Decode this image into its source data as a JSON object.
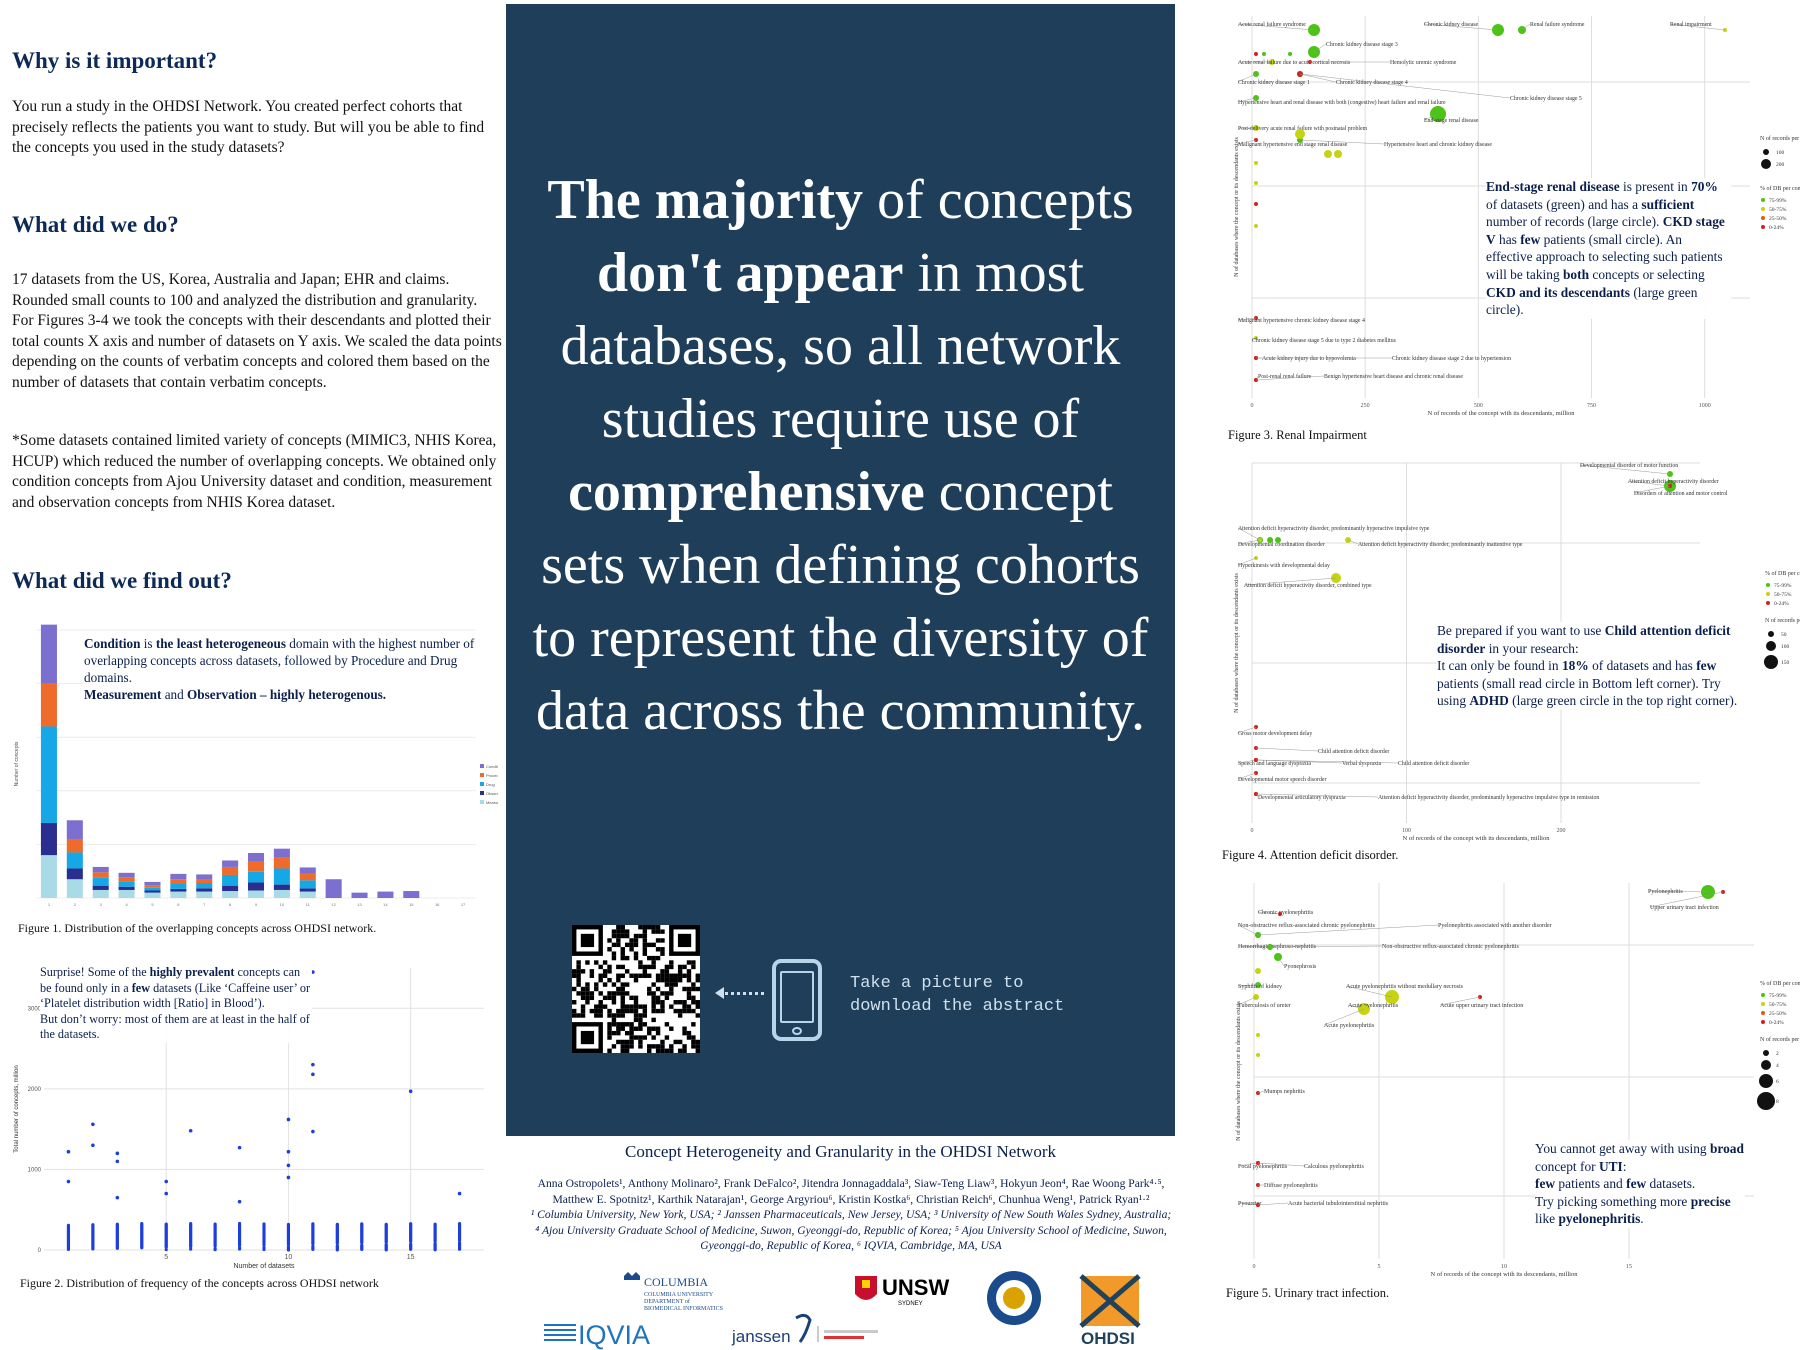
{
  "left": {
    "why_heading": "Why is it important?",
    "why_text": "You run a study in the OHDSI Network. You created perfect cohorts that precisely reflects the patients you want to study. But will you be able to find the concepts you used in the study datasets?",
    "what_heading": "What did we do?",
    "what_text": "17 datasets from the US, Korea, Australia and Japan; EHR and claims. Rounded small counts to 100 and analyzed the distribution and granularity. For Figures 3-4 we took the concepts with their descendants and plotted their total counts X axis and number of datasets on Y axis. We scaled the data points depending on the counts of verbatim concepts and colored them based on the number of datasets that contain verbatim concepts.",
    "some_text": "*Some datasets contained limited variety of concepts (MIMIC3, NHIS Korea, HCUP) which reduced the number of overlapping concepts. We obtained only condition concepts from Ajou University dataset and condition, measurement and observation concepts from NHIS Korea dataset.",
    "found_heading": "What did we find out?"
  },
  "fig1": {
    "caption": "Figure 1. Distribution of the overlapping concepts across OHDSI network.",
    "callout_1": "Condition",
    "callout_2": " is ",
    "callout_3": "the least heterogeneous",
    "callout_4": " domain with the highest number of overlapping concepts across datasets,  followed by Procedure and Drug domains.",
    "callout_5": "Measurement",
    "callout_6": " and ",
    "callout_7": "Observation – highly heterogenous.",
    "ylabel": "Number of concepts",
    "legend": [
      "Condition",
      "Procedure",
      "Drug",
      "Observation",
      "Measurement"
    ],
    "colors": [
      "#7b6fd0",
      "#ee6b2b",
      "#16a7e6",
      "#2a2f8f",
      "#a9dbe6"
    ]
  },
  "fig2": {
    "caption": "Figure 2. Distribution of frequency of the concepts across OHDSI network",
    "callout_1": "Surprise! Some of the ",
    "callout_2": "highly prevalent",
    "callout_3": " concepts can be found only in a ",
    "callout_4": "few",
    "callout_5": " datasets (Like ‘Caffeine user’ or ‘Platelet distribution width [Ratio] in Blood’).",
    "callout_6": "But don’t worry: most of them are at least in the half of the datasets.",
    "xlabel": "Number of datasets",
    "ylabel": "Total number of concepts, million",
    "xticks": [
      "5",
      "10",
      "15"
    ],
    "yticks": [
      "0",
      "1000",
      "2000",
      "3000"
    ]
  },
  "center": {
    "headline_parts": [
      "The majority",
      " of concepts ",
      "don't appear",
      " in most databases, so all network studies require use of ",
      "comprehensive",
      " concept sets when defining cohorts to represent the diversity of data across the community."
    ],
    "take_line1": "Take a picture to",
    "take_line2": "download the abstract",
    "title": "Concept Heterogeneity and Granularity in the OHDSI Network",
    "authors_line1": "Anna Ostropolets¹, Anthony Molinaro², Frank DeFalco², Jitendra Jonnagaddala³, Siaw-Teng Liaw³, Hokyun Jeon⁴, Rae Woong Park⁴·⁵,",
    "authors_line2": "Matthew E. Spotnitz¹, Karthik Natarajan¹, George Argyriou⁶, Kristin Kostka⁶, Christian Reich⁶, Chunhua Weng¹, Patrick Ryan¹·²",
    "affil_line1": "¹ Columbia University, New York, USA; ² Janssen Pharmaceuticals, New Jersey, USA; ³ University of New South Wales Sydney, Australia;",
    "affil_line2": "⁴ Ajou University Graduate School of Medicine, Suwon, Gyeonggi-do, Republic of Korea; ⁵ Ajou University School of Medicine, Suwon,",
    "affil_line3": "Gyeonggi-do, Republic of Korea, ⁶ IQVIA, Cambridge, MA, USA"
  },
  "logos": {
    "columbia_name": "COLUMBIA",
    "columbia_sub1": "COLUMBIA UNIVERSITY",
    "columbia_sub2": "DEPARTMENT of",
    "columbia_sub3": "BIOMEDICAL INFORMATICS",
    "iqvia": "IQVIA",
    "janssen": "janssen",
    "unsw": "UNSW",
    "unsw_sub": "SYDNEY",
    "ajou": "AJOU UNIVERSITY",
    "ohdsi": "OHDSI"
  },
  "fig3": {
    "caption": "Figure 3. Renal Impairment",
    "xlabel": "N of records of the concept with its descendants, million",
    "ylabel": "N of databases where the concept or its descendants exists",
    "xticks": [
      "0",
      "250",
      "500",
      "750",
      "1000"
    ],
    "labels": [
      "Acute renal failure syndrome",
      "Chronic kidney disease",
      "Renal failure syndrome",
      "Renal impairment",
      "Chronic kidney disease stage 3",
      "Acute renal failure due to acute cortical necrosis",
      "Hemolytic uremic syndrome",
      "Chronic kidney disease stage 1",
      "Chronic kidney disease stage 4",
      "Chronic kidney disease stage 5",
      "Hypertensive heart and renal disease with both (congestive) heart failure and renal failure",
      "End-stage renal disease",
      "Post-delivery acute renal failure with postnatal problem",
      "Malignant hypertensive end stage renal disease",
      "Hypertensive heart and chronic kidney disease",
      "Malignant hypertensive chronic kidney disease stage 4",
      "Chronic kidney disease stage 5 due to type 2 diabetes mellitus",
      "Acute kidney injury due to hypovolemia",
      "Chronic kidney disease stage 2 due to hypertension",
      "Post-renal renal failure",
      "Benign hypertensive heart disease and chronic renal disease"
    ],
    "callout_1": "End-stage renal disease",
    "callout_2": " is present in ",
    "callout_3": "70%",
    "callout_4": " of datasets (green) and has a ",
    "callout_5": "sufficient",
    "callout_6": " number of records (large circle). ",
    "callout_7": "CKD stage V",
    "callout_8": " has ",
    "callout_9": "few",
    "callout_10": " patients (small circle). An effective approach to selecting such patients will be taking ",
    "callout_11": "both",
    "callout_12": " concepts or selecting ",
    "callout_13": "CKD and its descendants",
    "callout_14": " (large green circle).",
    "legend_size_title": "N of records per concept, million",
    "legend_size_vals": [
      "100",
      "200"
    ],
    "legend_color_title": "% of DB per concept",
    "legend_color_vals": [
      "75-99%",
      "50-75%",
      "25-50%",
      "0-24%"
    ]
  },
  "fig4": {
    "caption": "Figure 4. Attention deficit disorder.",
    "xlabel": "N of records of the concept with its descendants, million",
    "ylabel": "N of databases where the concept or its descendants exists",
    "xticks": [
      "0",
      "100",
      "200"
    ],
    "labels": [
      "Developmental disorder of motor function",
      "Attention deficit hyperactivity disorder",
      "Disorders of attention and motor control",
      "Attention deficit hyperactivity disorder, predominantly hyperactive impulsive type",
      "Developmental coordination disorder",
      "Attention deficit hyperactivity disorder, predominantly inattentive type",
      "Hyperkinesis with developmental delay",
      "Attention deficit hyperactivity disorder, combined type",
      "Gross motor development delay",
      "Child attention deficit disorder",
      "Speech and language dyspraxia",
      "Verbal dyspraxia",
      "Child attention deficit disorder",
      "Developmental motor speech disorder",
      "Developmental articulatory dyspraxia",
      "Attention deficit hyperactivity disorder, predominantly hyperactive impulsive type in remission"
    ],
    "callout_1": "Be prepared ",
    "callout_2": "if you want to use ",
    "callout_3": "Child attention deficit disorder",
    "callout_4": " in your research:",
    "callout_5": "It can only be found in ",
    "callout_6": "18%",
    "callout_7": " of datasets and has ",
    "callout_8": "few",
    "callout_9": " patients (small read circle in Bottom left corner). Try using ",
    "callout_10": "ADHD",
    "callout_11": " (large green circle in the top right corner).",
    "legend_color_title": "% of DB per concept",
    "legend_color_vals": [
      "75-99%",
      "50-75%",
      "0-24%"
    ],
    "legend_size_title": "N of records per concept, million",
    "legend_size_vals": [
      "50",
      "100",
      "150"
    ]
  },
  "fig5": {
    "caption": "Figure 5. Urinary tract infection.",
    "xlabel": "N of records of the concept with its descendants, million",
    "ylabel": "N of databases where the concept or its descendants exists",
    "xticks": [
      "0",
      "5",
      "10",
      "15"
    ],
    "labels": [
      "Pyelonephritis",
      "Upper urinary tract infection",
      "Chronic pyelonephritis",
      "Non-obstructive reflux-associated chronic pyelonephritis",
      "Pyelonephritis associated with another disorder",
      "Hemorrhagic nephroso-nephritis",
      "Non-obstructive reflux-associated chronic pyelonephritis",
      "Pyonephrosis",
      "Syphilis of kidney",
      "Acute pyelonephritis without medullary necrosis",
      "Tuberculosis of ureter",
      "Acute pyelonephritis",
      "Acute upper urinary tract infection",
      "Acute pyelonephritis",
      "Mumps nephritis",
      "Focal pyelonephritis",
      "Calculous pyelonephritis",
      "Diffuse pyelonephritis",
      "Pyoureter",
      "Acute bacterial tubulointerstitial nephritis"
    ],
    "callout_1": "You cannot get away with using ",
    "callout_2": "broad",
    "callout_3": " concept for ",
    "callout_4": "UTI",
    "callout_5": ":",
    "callout_6": "few",
    "callout_7": " patients and ",
    "callout_8": "few",
    "callout_9": " datasets.",
    "callout_10": "Try picking something more ",
    "callout_11": "precise",
    "callout_12": " like ",
    "callout_13": "pyelonephritis",
    "callout_14": ".",
    "legend_color_title": "% of DB per concept",
    "legend_color_vals": [
      "75-99%",
      "50-75%",
      "25-50%",
      "0-24%"
    ],
    "legend_size_title": "N of records per concept, million",
    "legend_size_vals": [
      "2",
      "4",
      "6",
      "8"
    ]
  },
  "chart_data": [
    {
      "type": "bar",
      "id": "fig1",
      "stacked": true,
      "categories": [
        "1",
        "2",
        "3",
        "4",
        "5",
        "6",
        "7",
        "8",
        "9",
        "10",
        "11",
        "12",
        "13",
        "14",
        "15",
        "16",
        "17"
      ],
      "series": [
        {
          "name": "Measurement",
          "values": [
            800,
            350,
            150,
            150,
            100,
            120,
            120,
            130,
            140,
            150,
            120,
            0,
            0,
            0,
            0,
            0,
            0
          ]
        },
        {
          "name": "Observation",
          "values": [
            600,
            200,
            80,
            60,
            40,
            50,
            60,
            100,
            150,
            100,
            60,
            0,
            0,
            0,
            0,
            0,
            0
          ]
        },
        {
          "name": "Drug",
          "values": [
            1800,
            300,
            150,
            100,
            50,
            100,
            100,
            200,
            200,
            300,
            150,
            0,
            0,
            0,
            0,
            0,
            0
          ]
        },
        {
          "name": "Procedure",
          "values": [
            800,
            250,
            100,
            80,
            50,
            80,
            60,
            150,
            200,
            200,
            120,
            0,
            0,
            0,
            0,
            0,
            0
          ]
        },
        {
          "name": "Condition",
          "values": [
            1100,
            350,
            100,
            80,
            60,
            100,
            100,
            120,
            150,
            170,
            120,
            350,
            100,
            120,
            130,
            0,
            0
          ]
        }
      ],
      "ylabel": "Number of concepts",
      "ylim": [
        0,
        5000
      ],
      "legend": "right"
    },
    {
      "type": "scatter",
      "id": "fig2",
      "xlabel": "Number of datasets",
      "ylabel": "Total number of concepts, million",
      "xlim": [
        0,
        18
      ],
      "ylim": [
        0,
        3500
      ],
      "outliers": [
        [
          1,
          1220
        ],
        [
          1,
          850
        ],
        [
          2,
          1560
        ],
        [
          2,
          1300
        ],
        [
          3,
          1200
        ],
        [
          3,
          1100
        ],
        [
          3,
          650
        ],
        [
          5,
          850
        ],
        [
          5,
          700
        ],
        [
          6,
          1480
        ],
        [
          8,
          1270
        ],
        [
          8,
          600
        ],
        [
          10,
          1620
        ],
        [
          10,
          1220
        ],
        [
          10,
          1050
        ],
        [
          10,
          900
        ],
        [
          11,
          3450
        ],
        [
          11,
          2300
        ],
        [
          11,
          2180
        ],
        [
          11,
          1470
        ],
        [
          15,
          1970
        ],
        [
          17,
          700
        ]
      ]
    },
    {
      "type": "scatter",
      "id": "fig3",
      "xlabel": "N of records of the concept with its descendants, million",
      "ylabel": "N of databases where the concept or its descendants exists",
      "xlim": [
        0,
        1100
      ],
      "points": [
        {
          "label": "Acute renal failure syndrome",
          "x": 140,
          "y": 17,
          "pct": "75-99%",
          "size": 120
        },
        {
          "label": "Chronic kidney disease",
          "x": 550,
          "y": 17,
          "pct": "75-99%",
          "size": 100
        },
        {
          "label": "Renal failure syndrome",
          "x": 610,
          "y": 17,
          "pct": "75-99%",
          "size": 60
        },
        {
          "label": "Renal impairment",
          "x": 1060,
          "y": 17,
          "pct": "50-75%",
          "size": 20
        },
        {
          "label": "Chronic kidney disease stage 3",
          "x": 140,
          "y": 16,
          "pct": "75-99%",
          "size": 110
        },
        {
          "label": "End-stage renal disease",
          "x": 290,
          "y": 13,
          "pct": "75-99%",
          "size": 180
        }
      ]
    },
    {
      "type": "scatter",
      "id": "fig4",
      "xlabel": "N of records of the concept with its descendants, million",
      "ylabel": "N of databases where the concept or its descendants exists",
      "xlim": [
        0,
        290
      ],
      "points": [
        {
          "label": "Developmental disorder of motor function",
          "x": 278,
          "y": 16,
          "pct": "75-99%",
          "size": 50
        },
        {
          "label": "Attention deficit hyperactivity disorder",
          "x": 265,
          "y": 15,
          "pct": "75-99%",
          "size": 150
        },
        {
          "label": "Attention deficit hyperactivity disorder, combined type",
          "x": 48,
          "y": 10,
          "pct": "50-75%",
          "size": 60
        },
        {
          "label": "Child attention deficit disorder",
          "x": 0,
          "y": 3,
          "pct": "0-24%",
          "size": 10
        }
      ]
    },
    {
      "type": "scatter",
      "id": "fig5",
      "xlabel": "N of records of the concept with its descendants, million",
      "ylabel": "N of databases where the concept or its descendants exists",
      "xlim": [
        0,
        20
      ],
      "points": [
        {
          "label": "Pyelonephritis",
          "x": 17.6,
          "y": 16,
          "pct": "75-99%",
          "size": 8
        },
        {
          "label": "Upper urinary tract infection",
          "x": 18.2,
          "y": 16,
          "pct": "0-24%",
          "size": 2
        },
        {
          "label": "Acute pyelonephritis without medullary necrosis",
          "x": 4.7,
          "y": 13,
          "pct": "50-75%",
          "size": 7
        },
        {
          "label": "Acute pyelonephritis",
          "x": 3.6,
          "y": 12,
          "pct": "50-75%",
          "size": 6
        },
        {
          "label": "Mumps nephritis",
          "x": 0,
          "y": 7,
          "pct": "0-24%",
          "size": 2
        }
      ]
    }
  ]
}
